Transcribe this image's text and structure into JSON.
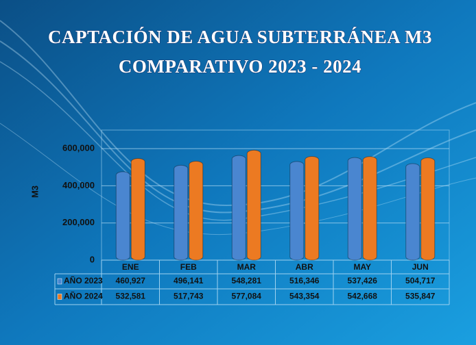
{
  "chart_data": {
    "type": "bar",
    "title": "CAPTACIÓN DE AGUA SUBTERRÁNEA M3",
    "subtitle": "COMPARATIVO 2023 - 2024",
    "y_label": "M3",
    "categories": [
      "ENE",
      "FEB",
      "MAR",
      "ABR",
      "MAY",
      "JUN"
    ],
    "series": [
      {
        "name": "AÑO 2023",
        "color": "#4a86d0",
        "values": [
          460927,
          496141,
          548281,
          516346,
          537426,
          504717
        ],
        "value_labels": [
          "460,927",
          "496,141",
          "548,281",
          "516,346",
          "537,426",
          "504,717"
        ]
      },
      {
        "name": "AÑO 2024",
        "color": "#ec7a22",
        "values": [
          532581,
          517743,
          577084,
          543354,
          542668,
          535847
        ],
        "value_labels": [
          "532,581",
          "517,743",
          "577,084",
          "543,354",
          "542,668",
          "535,847"
        ]
      }
    ],
    "ylim": [
      0,
      700000
    ],
    "yticks": [
      0,
      {
        "value": 200000,
        "label": "200,000"
      },
      {
        "value": 400000,
        "label": "400,000"
      },
      {
        "value": 600000,
        "label": "600,000"
      }
    ],
    "grid": true
  }
}
